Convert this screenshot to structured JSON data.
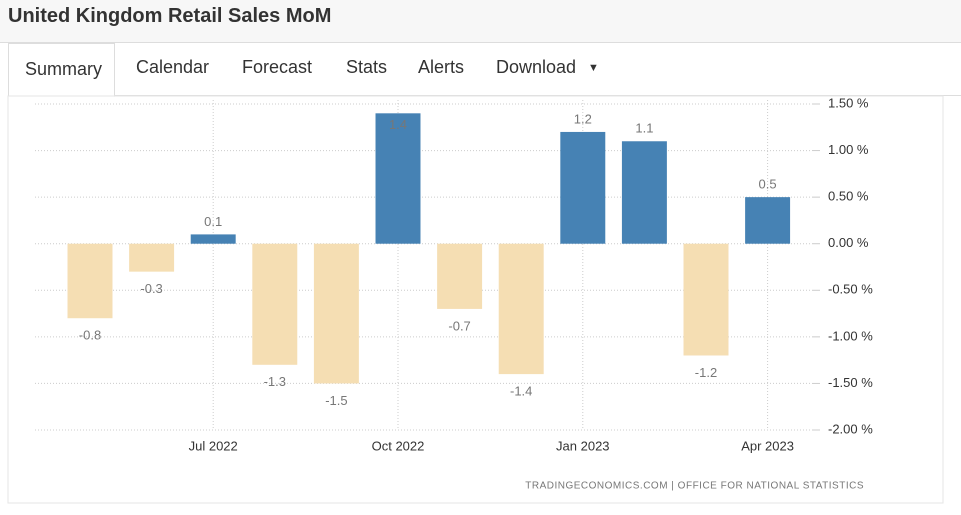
{
  "header": {
    "title": "United Kingdom Retail Sales MoM"
  },
  "tabs": [
    "Summary",
    "Calendar",
    "Forecast",
    "Stats",
    "Alerts",
    "Download"
  ],
  "chart_data": {
    "type": "bar",
    "categories": [
      null,
      null,
      "Jul 2022",
      null,
      null,
      "Oct 2022",
      null,
      null,
      "Jan 2023",
      null,
      null,
      "Apr 2023"
    ],
    "values": [
      -0.8,
      -0.3,
      0.1,
      -1.3,
      -1.5,
      1.4,
      -0.7,
      -1.4,
      1.2,
      1.1,
      -1.2,
      0.5
    ],
    "color": "#4682b4",
    "negative_color": "#f5deb3",
    "ylim": [
      -2,
      1.5
    ],
    "yticks": [
      {
        "value": 1.5,
        "label": "1.50 %"
      },
      {
        "value": 1,
        "label": "1.00 %"
      },
      {
        "value": 0.5,
        "label": "0.50 %"
      },
      {
        "value": 0,
        "label": "0.00 %"
      },
      {
        "value": -0.5,
        "label": "-0.50 %"
      },
      {
        "value": -1,
        "label": "-1.00 %"
      },
      {
        "value": -1.5,
        "label": "-1.50 %"
      },
      {
        "value": -2,
        "label": "-2.00 %"
      }
    ],
    "grid": true,
    "source": "TRADINGECONOMICS.COM | OFFICE FOR NATIONAL STATISTICS"
  }
}
